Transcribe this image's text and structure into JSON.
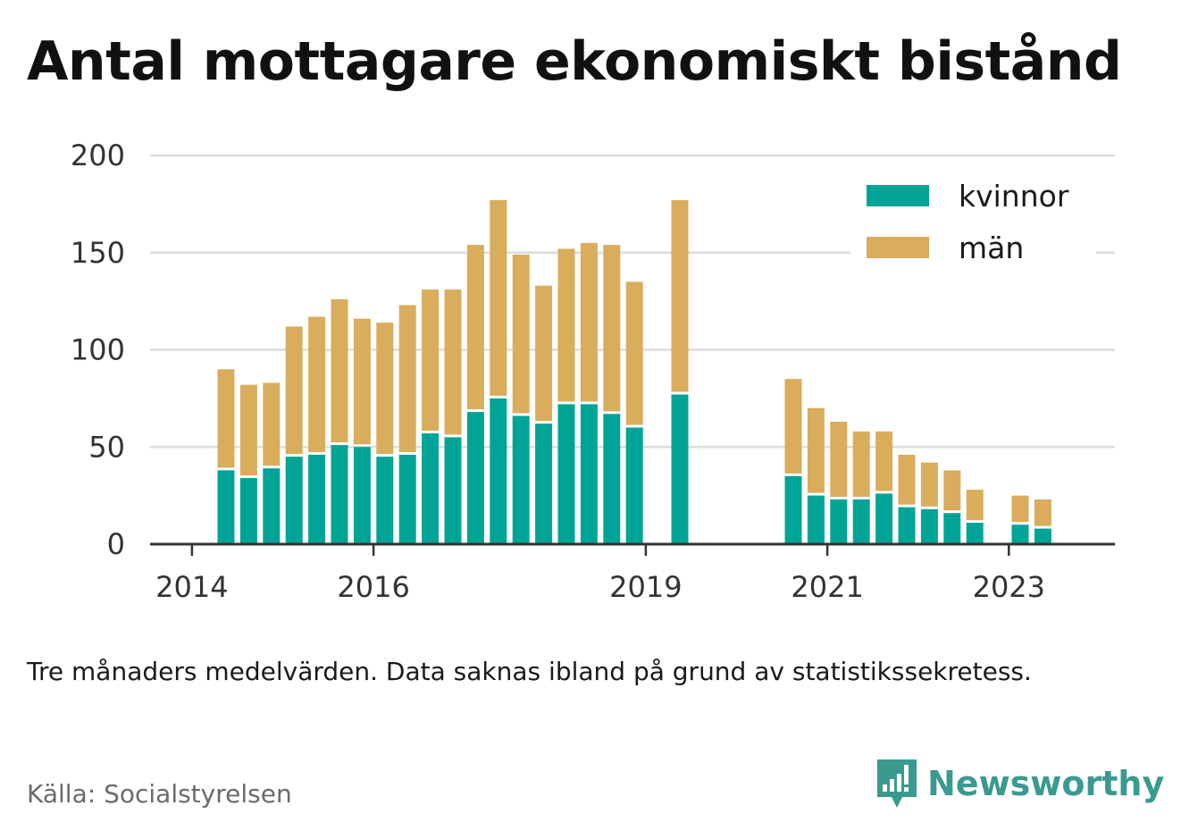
{
  "title": "Antal mottagare ekonomiskt bistånd",
  "note": "Tre månaders medelvärden. Data saknas ibland på grund av statistikssekretess.",
  "source": "Källa: Socialstyrelsen",
  "brand": "Newsworthy",
  "colors": {
    "kvinnor": "#00a497",
    "man": "#d9ad5c",
    "grid": "#dcdcdc",
    "axis": "#333333",
    "brand": "#3a9a8f"
  },
  "chart_data": {
    "type": "bar",
    "stacked": true,
    "title": "Antal mottagare ekonomiskt bistånd",
    "xlabel": "",
    "ylabel": "",
    "ylim": [
      0,
      200
    ],
    "yticks": [
      0,
      50,
      100,
      150,
      200
    ],
    "xticks": [
      "2014",
      "2016",
      "2019",
      "2021",
      "2023"
    ],
    "grid": true,
    "legend_position": "top-right",
    "x": [
      "2014-Q2",
      "2014-Q3",
      "2014-Q4",
      "2015-Q1",
      "2015-Q2",
      "2015-Q3",
      "2015-Q4",
      "2016-Q1",
      "2016-Q2",
      "2016-Q3",
      "2016-Q4",
      "2017-Q1",
      "2017-Q2",
      "2017-Q3",
      "2017-Q4",
      "2018-Q1",
      "2018-Q2",
      "2018-Q3",
      "2018-Q4",
      "2019-Q1",
      "2019-Q2",
      "2019-Q3",
      "2019-Q4",
      "2020-Q1",
      "2020-Q2",
      "2020-Q3",
      "2020-Q4",
      "2021-Q1",
      "2021-Q2",
      "2021-Q3",
      "2021-Q4",
      "2022-Q1",
      "2022-Q2",
      "2022-Q3",
      "2022-Q4",
      "2023-Q1",
      "2023-Q2"
    ],
    "series": [
      {
        "name": "kvinnor",
        "values": [
          38,
          34,
          39,
          45,
          46,
          51,
          50,
          45,
          46,
          57,
          55,
          68,
          75,
          66,
          62,
          72,
          72,
          67,
          60,
          null,
          77,
          null,
          null,
          null,
          null,
          35,
          25,
          23,
          23,
          26,
          19,
          18,
          16,
          11,
          null,
          10,
          8
        ]
      },
      {
        "name": "män",
        "values": [
          52,
          48,
          44,
          67,
          71,
          75,
          66,
          69,
          77,
          74,
          76,
          86,
          102,
          83,
          71,
          80,
          83,
          87,
          75,
          null,
          100,
          null,
          null,
          null,
          null,
          50,
          45,
          40,
          35,
          32,
          27,
          24,
          22,
          17,
          null,
          15,
          15
        ]
      }
    ]
  }
}
